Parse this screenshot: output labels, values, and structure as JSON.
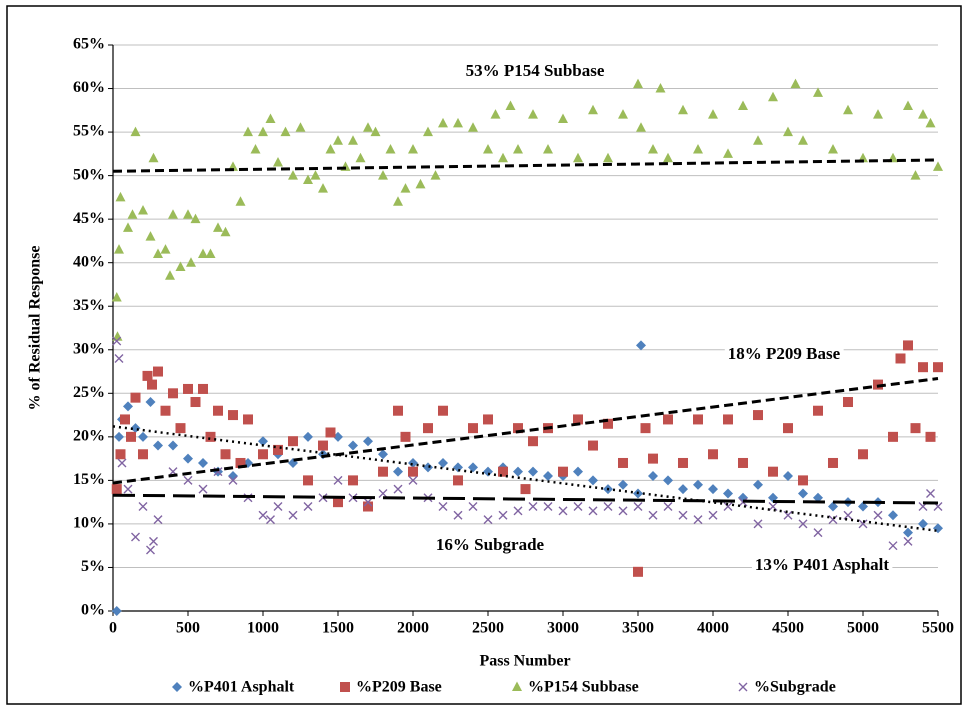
{
  "chart_data": {
    "type": "scatter",
    "xlabel": "Pass Number",
    "ylabel": "% of Residual Response",
    "xlim": [
      0,
      5500
    ],
    "xticks": [
      0,
      500,
      1000,
      1500,
      2000,
      2500,
      3000,
      3500,
      4000,
      4500,
      5000,
      5500
    ],
    "ylim": [
      0,
      65
    ],
    "yticks": [
      {
        "value": 0,
        "label": "0%"
      },
      {
        "value": 5,
        "label": "5%"
      },
      {
        "value": 10,
        "label": "10%"
      },
      {
        "value": 15,
        "label": "15%"
      },
      {
        "value": 20,
        "label": "20%"
      },
      {
        "value": 25,
        "label": "25%"
      },
      {
        "value": 30,
        "label": "30%"
      },
      {
        "value": 35,
        "label": "35%"
      },
      {
        "value": 40,
        "label": "40%"
      },
      {
        "value": 45,
        "label": "45%"
      },
      {
        "value": 50,
        "label": "50%"
      },
      {
        "value": 55,
        "label": "55%"
      },
      {
        "value": 60,
        "label": "60%"
      },
      {
        "value": 65,
        "label": "65%"
      }
    ],
    "grid": true,
    "legend": "bottom",
    "annotations": [
      "53% P154 Subbase",
      "18% P209 Base",
      "16% Subgrade",
      "13% P401 Asphalt"
    ],
    "series": [
      {
        "name": "%P401 Asphalt",
        "color": "#4f81bd",
        "marker": "diamond",
        "x": [
          25,
          40,
          60,
          100,
          150,
          200,
          250,
          300,
          400,
          500,
          600,
          700,
          800,
          900,
          1000,
          1100,
          1200,
          1300,
          1400,
          1500,
          1600,
          1700,
          1800,
          1900,
          2000,
          2100,
          2200,
          2300,
          2400,
          2500,
          2600,
          2700,
          2800,
          2900,
          3000,
          3100,
          3200,
          3300,
          3400,
          3500,
          3520,
          3600,
          3700,
          3800,
          3900,
          4000,
          4100,
          4200,
          4300,
          4400,
          4500,
          4600,
          4700,
          4800,
          4900,
          5000,
          5100,
          5200,
          5300,
          5400,
          5500
        ],
        "values": [
          0,
          20,
          22,
          23.5,
          21,
          20,
          24,
          19,
          19,
          17.5,
          17,
          16,
          15.5,
          17,
          19.5,
          18,
          17,
          20,
          18,
          20,
          19,
          19.5,
          18,
          16,
          17,
          16.5,
          17,
          16.5,
          16.5,
          16,
          16.5,
          16,
          16,
          15.5,
          15.5,
          16,
          15,
          14,
          14.5,
          13.5,
          30.5,
          15.5,
          15,
          14,
          14.5,
          14,
          13.5,
          13,
          14.5,
          13,
          15.5,
          13.5,
          13,
          12,
          12.5,
          12,
          12.5,
          11,
          9,
          10,
          9.5
        ]
      },
      {
        "name": "%P209 Base",
        "color": "#c0504d",
        "marker": "square",
        "x": [
          25,
          50,
          80,
          120,
          150,
          200,
          230,
          260,
          300,
          350,
          400,
          450,
          500,
          550,
          600,
          650,
          700,
          750,
          800,
          850,
          900,
          1000,
          1100,
          1200,
          1300,
          1400,
          1450,
          1500,
          1600,
          1700,
          1800,
          1900,
          1950,
          2000,
          2100,
          2200,
          2300,
          2400,
          2500,
          2600,
          2700,
          2750,
          2800,
          2900,
          3000,
          3100,
          3200,
          3300,
          3400,
          3500,
          3550,
          3600,
          3700,
          3800,
          3900,
          4000,
          4100,
          4200,
          4300,
          4400,
          4500,
          4600,
          4700,
          4800,
          4900,
          5000,
          5100,
          5200,
          5250,
          5300,
          5350,
          5400,
          5450,
          5500
        ],
        "values": [
          14,
          18,
          22,
          20,
          24.5,
          18,
          27,
          26,
          27.5,
          23,
          25,
          21,
          25.5,
          24,
          25.5,
          20,
          23,
          18,
          22.5,
          17,
          22,
          18,
          18.5,
          19.5,
          15,
          19,
          20.5,
          12.5,
          15,
          12,
          16,
          23,
          20,
          16,
          21,
          23,
          15,
          21,
          22,
          16,
          21,
          14,
          19.5,
          21,
          16,
          22,
          19,
          21.5,
          17,
          4.5,
          21,
          17.5,
          22,
          17,
          22,
          18,
          22,
          17,
          22.5,
          16,
          21,
          15,
          23,
          17,
          24,
          18,
          26,
          20,
          29,
          30.5,
          21,
          28,
          20,
          28
        ]
      },
      {
        "name": "%P154 Subbase",
        "color": "#9bbb59",
        "marker": "triangle",
        "x": [
          25,
          30,
          40,
          50,
          100,
          130,
          150,
          200,
          250,
          270,
          300,
          350,
          380,
          400,
          450,
          500,
          520,
          550,
          600,
          650,
          700,
          750,
          800,
          850,
          900,
          950,
          1000,
          1050,
          1100,
          1150,
          1200,
          1250,
          1300,
          1350,
          1400,
          1450,
          1500,
          1550,
          1600,
          1650,
          1700,
          1750,
          1800,
          1850,
          1900,
          1950,
          2000,
          2050,
          2100,
          2150,
          2200,
          2300,
          2400,
          2500,
          2550,
          2600,
          2650,
          2700,
          2800,
          2900,
          3000,
          3100,
          3200,
          3300,
          3400,
          3500,
          3520,
          3600,
          3650,
          3700,
          3800,
          3900,
          4000,
          4100,
          4200,
          4300,
          4400,
          4500,
          4550,
          4600,
          4700,
          4800,
          4900,
          5000,
          5100,
          5200,
          5300,
          5350,
          5400,
          5450,
          5500
        ],
        "values": [
          36,
          31.5,
          41.5,
          47.5,
          44,
          45.5,
          55,
          46,
          43,
          52,
          41,
          41.5,
          38.5,
          45.5,
          39.5,
          45.5,
          40,
          45,
          41,
          41,
          44,
          43.5,
          51,
          47,
          55,
          53,
          55,
          56.5,
          51.5,
          55,
          50,
          55.5,
          49.5,
          50,
          48.5,
          53,
          54,
          51,
          54,
          52,
          55.5,
          55,
          50,
          53,
          47,
          48.5,
          53,
          49,
          55,
          50,
          56,
          56,
          55.5,
          53,
          57,
          52,
          58,
          53,
          57,
          53,
          56.5,
          52,
          57.5,
          52,
          57,
          60.5,
          55.5,
          53,
          60,
          52,
          57.5,
          53,
          57,
          52.5,
          58,
          54,
          59,
          55,
          60.5,
          54,
          59.5,
          53,
          57.5,
          52,
          57,
          52,
          58,
          50,
          57,
          56,
          51
        ]
      },
      {
        "name": "%Subgrade",
        "color": "#8064a2",
        "marker": "x",
        "x": [
          25,
          40,
          60,
          100,
          150,
          200,
          250,
          270,
          300,
          400,
          500,
          600,
          700,
          800,
          900,
          1000,
          1050,
          1100,
          1200,
          1300,
          1400,
          1500,
          1600,
          1700,
          1800,
          1900,
          2000,
          2100,
          2200,
          2300,
          2400,
          2500,
          2600,
          2700,
          2800,
          2900,
          3000,
          3100,
          3200,
          3300,
          3400,
          3500,
          3600,
          3700,
          3800,
          3900,
          4000,
          4100,
          4200,
          4300,
          4400,
          4500,
          4600,
          4700,
          4800,
          4900,
          5000,
          5100,
          5200,
          5300,
          5400,
          5450,
          5500
        ],
        "values": [
          31,
          29,
          17,
          14,
          8.5,
          12,
          7,
          8,
          10.5,
          16,
          15,
          14,
          16,
          15,
          13,
          11,
          10.5,
          12,
          11,
          12,
          13,
          15,
          13,
          12.5,
          13.5,
          14,
          15,
          13,
          12,
          11,
          12,
          10.5,
          11,
          11.5,
          12,
          12,
          11.5,
          12,
          11.5,
          12,
          11.5,
          12,
          11,
          12,
          11,
          10.5,
          11,
          12,
          12.5,
          10,
          12,
          11,
          10,
          9,
          10.5,
          11,
          10,
          11,
          7.5,
          8,
          12,
          13.5,
          12
        ]
      }
    ],
    "trendlines": [
      {
        "color": "#000000",
        "style": "dash",
        "x": [
          0,
          5500
        ],
        "y": [
          50.5,
          51.8
        ]
      },
      {
        "color": "#000000",
        "style": "dash",
        "x": [
          0,
          5500
        ],
        "y": [
          14.7,
          26.7
        ]
      },
      {
        "color": "#000000",
        "style": "longdash",
        "x": [
          0,
          5500
        ],
        "y": [
          13.3,
          12.4
        ]
      },
      {
        "color": "#000000",
        "style": "dot",
        "x": [
          0,
          5500
        ],
        "y": [
          21.2,
          9.2
        ]
      }
    ]
  }
}
